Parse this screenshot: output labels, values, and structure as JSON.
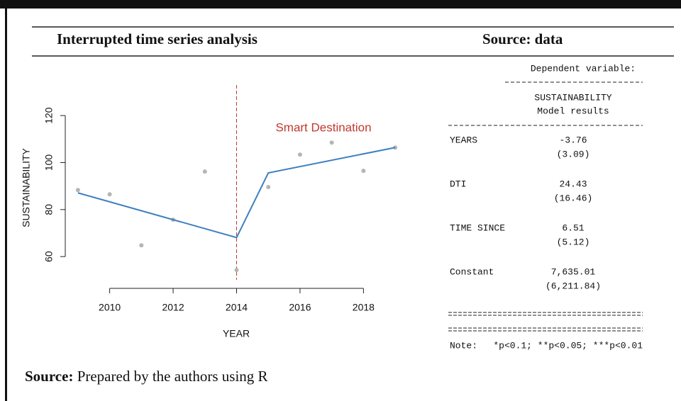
{
  "header": {
    "title": "Interrupted time series analysis",
    "source": "Source: data"
  },
  "chart_data": {
    "type": "scatter-line",
    "y_label": "SUSTAINABILITY",
    "x_label": "YEAR",
    "annotation": "Smart Destination",
    "intervention": 2014,
    "intervention_color": "#c0392b",
    "xlim": [
      2008.6,
      2019.4
    ],
    "ylim": [
      50.1,
      133
    ],
    "xticks": [
      2010,
      2012,
      2014,
      2016,
      2018
    ],
    "yticks": [
      60,
      80,
      100,
      120
    ],
    "series": [
      {
        "name": "observed",
        "kind": "points",
        "color": "#b5b5b5",
        "x": [
          2009,
          2010,
          2011,
          2012,
          2013,
          2014,
          2015,
          2016,
          2017,
          2018,
          2019
        ],
        "values": [
          88.3,
          86.5,
          64.8,
          75.7,
          96.2,
          54.3,
          89.6,
          103.4,
          108.5,
          96.5,
          106.4
        ]
      },
      {
        "name": "fitted",
        "kind": "line",
        "color": "#3d7fc0",
        "x": [
          2009,
          2014,
          2015,
          2019
        ],
        "values": [
          87.1,
          68.1,
          95.6,
          106.4
        ]
      }
    ]
  },
  "table": {
    "dependent": "Dependent variable:",
    "variable": "SUSTAINABILITY",
    "model": "Model results",
    "rows": [
      [
        "YEARS",
        "-3.76",
        "(3.09)"
      ],
      [
        "DTI",
        "24.43",
        "(16.46)"
      ],
      [
        "TIME SINCE",
        "6.51",
        "(5.12)"
      ],
      [
        "Constant",
        "7,635.01",
        "(6,211.84)"
      ]
    ],
    "note": [
      "Note:",
      "*p<0.1; **p<0.05; ***p<0.01"
    ]
  },
  "footer": {
    "label": "Source:",
    "text": "Prepared by the authors using R"
  }
}
